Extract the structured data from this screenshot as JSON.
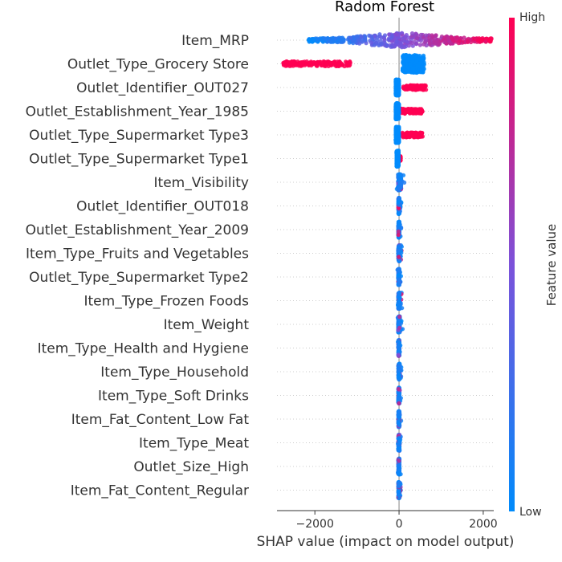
{
  "chart_data": {
    "type": "scatter",
    "subtype": "shap-beeswarm",
    "title": "Radom Forest",
    "xlabel": "SHAP value (impact on model output)",
    "xlim": [
      -2900,
      2250
    ],
    "xticks": [
      -2000,
      0,
      2000
    ],
    "xtick_labels": [
      "−2000",
      "0",
      "2000"
    ],
    "zero_line": true,
    "grid": false,
    "colorbar": {
      "title": "Feature value",
      "high_label": "High",
      "low_label": "Low",
      "low_color": "#008bfb",
      "mid_color": "#7c52da",
      "high_color": "#ff0052"
    },
    "features": [
      {
        "name": "Item_MRP",
        "spread": [
          -2150,
          2200
        ],
        "description": "low values negative, high values positive"
      },
      {
        "name": "Outlet_Type_Grocery Store",
        "high_range": [
          -2750,
          -1150
        ],
        "low_range": [
          80,
          600
        ]
      },
      {
        "name": "Outlet_Identifier_OUT027",
        "high_range": [
          100,
          650
        ],
        "low_range": [
          -80,
          0
        ]
      },
      {
        "name": "Outlet_Establishment_Year_1985",
        "high_range": [
          50,
          560
        ],
        "low_range": [
          -80,
          0
        ]
      },
      {
        "name": "Outlet_Type_Supermarket Type3",
        "high_range": [
          80,
          560
        ],
        "low_range": [
          -80,
          0
        ]
      },
      {
        "name": "Outlet_Type_Supermarket Type1",
        "high_range": [
          -20,
          40
        ],
        "low_range": [
          -60,
          -10
        ]
      },
      {
        "name": "Item_Visibility",
        "range": [
          -60,
          150
        ]
      },
      {
        "name": "Outlet_Identifier_OUT018",
        "range": [
          -40,
          30
        ]
      },
      {
        "name": "Outlet_Establishment_Year_2009",
        "range": [
          -40,
          30
        ]
      },
      {
        "name": "Item_Type_Fruits and Vegetables",
        "range": [
          -40,
          40
        ]
      },
      {
        "name": "Outlet_Type_Supermarket Type2",
        "range": [
          -40,
          30
        ]
      },
      {
        "name": "Item_Type_Frozen Foods",
        "range": [
          -40,
          50
        ]
      },
      {
        "name": "Item_Weight",
        "range": [
          -50,
          60
        ]
      },
      {
        "name": "Item_Type_Health and Hygiene",
        "range": [
          -40,
          30
        ]
      },
      {
        "name": "Item_Type_Household",
        "range": [
          -40,
          50
        ]
      },
      {
        "name": "Item_Type_Soft Drinks",
        "range": [
          -40,
          30
        ]
      },
      {
        "name": "Item_Fat_Content_Low Fat",
        "range": [
          -40,
          40
        ]
      },
      {
        "name": "Item_Type_Meat",
        "range": [
          -40,
          40
        ]
      },
      {
        "name": "Outlet_Size_High",
        "range": [
          -40,
          30
        ]
      },
      {
        "name": "Item_Fat_Content_Regular",
        "range": [
          -40,
          40
        ]
      }
    ]
  }
}
